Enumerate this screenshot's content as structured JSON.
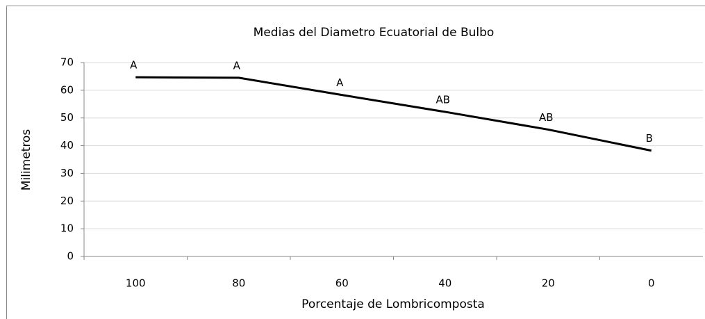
{
  "chart_data": {
    "type": "line",
    "title": "Medias del Diametro Ecuatorial de Bulbo",
    "x_label": "Porcentaje de Lombricomposta",
    "y_label": "Milimetros",
    "categories": [
      "100",
      "80",
      "60",
      "40",
      "20",
      "0"
    ],
    "series": [
      {
        "color": "#000000",
        "values": [
          64.7,
          64.5,
          58.3,
          52.2,
          45.8,
          38.2
        ]
      }
    ],
    "annotations": [
      "A",
      "A",
      "A",
      "AB",
      "AB",
      "B"
    ],
    "ylim": [
      0,
      70
    ],
    "yticks": [
      0,
      10,
      20,
      30,
      40,
      50,
      60,
      70
    ],
    "grid": true
  }
}
